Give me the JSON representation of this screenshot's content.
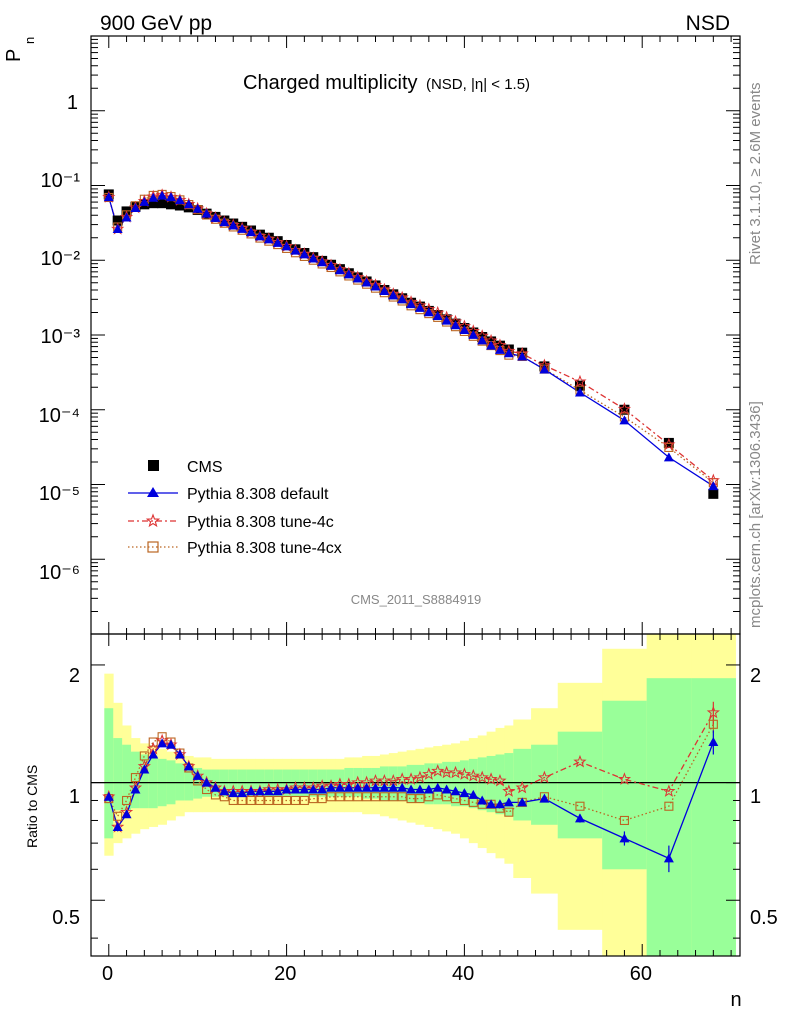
{
  "header": {
    "left": "900 GeV pp",
    "right": "NSD"
  },
  "side": {
    "rivet": "Rivet 3.1.10, ≥ 2.6M events",
    "mcplots": "mcplots.cern.ch [arXiv:1306.3436]"
  },
  "chart_data": {
    "type": "line",
    "title": "Charged multiplicity",
    "subtitle": "(NSD, |η| < 1.5)",
    "ylabel_main": "P",
    "ylabel_sub": "n",
    "xlabel": "n",
    "ratio_ylabel": "Ratio to CMS",
    "watermark": "CMS_2011_S8884919",
    "xlim": [
      -2,
      71
    ],
    "ylim_main": [
      1e-07,
      10
    ],
    "ylim_ratio": [
      0.36,
      2.4
    ],
    "x_ticks": [
      "0",
      "20",
      "40",
      "60"
    ],
    "y_ticks_main": [
      "10⁻⁶",
      "10⁻⁵",
      "10⁻⁴",
      "10⁻³",
      "10⁻²",
      "10⁻¹",
      "1"
    ],
    "y_ticks_ratio": [
      "0.5",
      "1",
      "2"
    ],
    "legend": [
      {
        "key": "data",
        "label": "CMS"
      },
      {
        "key": "default",
        "label": "Pythia 8.308 default"
      },
      {
        "key": "c4",
        "label": "Pythia 8.308 tune-4c"
      },
      {
        "key": "cx",
        "label": "Pythia 8.308 tune-4cx"
      }
    ],
    "colors": {
      "data": "#000000",
      "default": "#0000dd",
      "c4": "#dd3333",
      "cx": "#bb6622",
      "band_inner": "#99ff99",
      "band_outer": "#ffff99"
    },
    "data_x": [
      0,
      1,
      2,
      3,
      4,
      5,
      6,
      7,
      8,
      9,
      10,
      11,
      12,
      13,
      14,
      15,
      16,
      17,
      18,
      19,
      20,
      21,
      22,
      23,
      24,
      25,
      26,
      27,
      28,
      29,
      30,
      31,
      32,
      33,
      34,
      35,
      36,
      37,
      38,
      39,
      40,
      41,
      42,
      43,
      44,
      45,
      46.5,
      49,
      53,
      58,
      63,
      68
    ],
    "data_y": [
      0.076,
      0.034,
      0.045,
      0.052,
      0.056,
      0.058,
      0.058,
      0.056,
      0.054,
      0.051,
      0.047,
      0.042,
      0.038,
      0.034,
      0.031,
      0.028,
      0.025,
      0.022,
      0.02,
      0.018,
      0.016,
      0.014,
      0.0125,
      0.011,
      0.0098,
      0.0087,
      0.0076,
      0.0067,
      0.0059,
      0.0052,
      0.0046,
      0.004,
      0.0035,
      0.0031,
      0.0027,
      0.0024,
      0.0021,
      0.00185,
      0.00162,
      0.00142,
      0.00124,
      0.00108,
      0.00094,
      0.00082,
      0.00072,
      0.00064,
      0.00058,
      0.00038,
      0.00021,
      0.0001,
      3.6e-05,
      7.5e-06
    ],
    "ratio_x": [
      0,
      1,
      2,
      3,
      4,
      5,
      6,
      7,
      8,
      9,
      10,
      11,
      12,
      13,
      14,
      15,
      16,
      17,
      18,
      19,
      20,
      21,
      22,
      23,
      24,
      25,
      26,
      27,
      28,
      29,
      30,
      31,
      32,
      33,
      34,
      35,
      36,
      37,
      38,
      39,
      40,
      41,
      42,
      43,
      44,
      45,
      46.5,
      49,
      53,
      58,
      63,
      68
    ],
    "band_x": [
      0,
      1,
      2,
      3,
      4,
      5,
      6,
      7,
      8,
      9,
      10,
      11,
      12,
      13,
      14,
      15,
      16,
      17,
      18,
      19,
      20,
      21,
      22,
      23,
      24,
      25,
      26,
      27,
      28,
      29,
      30,
      31,
      32,
      33,
      34,
      35,
      36,
      37,
      38,
      39,
      40,
      41,
      42,
      43,
      44,
      45,
      46.5,
      49,
      53,
      58,
      63,
      68
    ],
    "band_halfwidth": [
      0.5,
      0.5,
      0.5,
      0.5,
      0.5,
      0.5,
      0.5,
      0.5,
      0.5,
      0.5,
      0.5,
      0.5,
      0.5,
      0.5,
      0.5,
      0.5,
      0.5,
      0.5,
      0.5,
      0.5,
      0.5,
      0.5,
      0.5,
      0.5,
      0.5,
      0.5,
      0.5,
      0.5,
      0.5,
      0.5,
      0.5,
      0.5,
      0.5,
      0.5,
      0.5,
      0.5,
      0.5,
      0.5,
      0.5,
      0.5,
      0.5,
      0.5,
      0.5,
      0.5,
      0.5,
      0.5,
      1,
      1.5,
      2.5,
      2.5,
      2.5,
      2.5
    ],
    "band_inner": [
      [
        0.72,
        1.55
      ],
      [
        0.85,
        1.3
      ],
      [
        0.85,
        1.25
      ],
      [
        0.86,
        1.2
      ],
      [
        0.86,
        1.18
      ],
      [
        0.86,
        1.17
      ],
      [
        0.87,
        1.15
      ],
      [
        0.88,
        1.14
      ],
      [
        0.9,
        1.12
      ],
      [
        0.9,
        1.1
      ],
      [
        0.91,
        1.09
      ],
      [
        0.92,
        1.08
      ],
      [
        0.92,
        1.08
      ],
      [
        0.92,
        1.08
      ],
      [
        0.92,
        1.08
      ],
      [
        0.92,
        1.08
      ],
      [
        0.92,
        1.08
      ],
      [
        0.92,
        1.08
      ],
      [
        0.92,
        1.08
      ],
      [
        0.92,
        1.08
      ],
      [
        0.92,
        1.08
      ],
      [
        0.92,
        1.08
      ],
      [
        0.92,
        1.08
      ],
      [
        0.92,
        1.08
      ],
      [
        0.92,
        1.08
      ],
      [
        0.92,
        1.08
      ],
      [
        0.92,
        1.08
      ],
      [
        0.92,
        1.09
      ],
      [
        0.92,
        1.09
      ],
      [
        0.91,
        1.09
      ],
      [
        0.91,
        1.09
      ],
      [
        0.9,
        1.1
      ],
      [
        0.9,
        1.1
      ],
      [
        0.9,
        1.1
      ],
      [
        0.89,
        1.11
      ],
      [
        0.89,
        1.11
      ],
      [
        0.88,
        1.12
      ],
      [
        0.88,
        1.12
      ],
      [
        0.88,
        1.13
      ],
      [
        0.87,
        1.13
      ],
      [
        0.87,
        1.14
      ],
      [
        0.86,
        1.15
      ],
      [
        0.85,
        1.16
      ],
      [
        0.84,
        1.17
      ],
      [
        0.83,
        1.18
      ],
      [
        0.82,
        1.19
      ],
      [
        0.8,
        1.22
      ],
      [
        0.78,
        1.25
      ],
      [
        0.72,
        1.35
      ],
      [
        0.6,
        1.62
      ],
      [
        0.36,
        1.85
      ],
      [
        0.36,
        1.85
      ]
    ],
    "band_outer": [
      [
        0.65,
        1.9
      ],
      [
        0.7,
        1.6
      ],
      [
        0.72,
        1.4
      ],
      [
        0.74,
        1.3
      ],
      [
        0.76,
        1.26
      ],
      [
        0.77,
        1.24
      ],
      [
        0.78,
        1.22
      ],
      [
        0.8,
        1.2
      ],
      [
        0.82,
        1.18
      ],
      [
        0.84,
        1.17
      ],
      [
        0.84,
        1.16
      ],
      [
        0.84,
        1.16
      ],
      [
        0.84,
        1.15
      ],
      [
        0.84,
        1.15
      ],
      [
        0.84,
        1.15
      ],
      [
        0.84,
        1.15
      ],
      [
        0.84,
        1.15
      ],
      [
        0.84,
        1.15
      ],
      [
        0.84,
        1.15
      ],
      [
        0.84,
        1.15
      ],
      [
        0.84,
        1.15
      ],
      [
        0.84,
        1.15
      ],
      [
        0.84,
        1.15
      ],
      [
        0.84,
        1.15
      ],
      [
        0.84,
        1.15
      ],
      [
        0.84,
        1.15
      ],
      [
        0.84,
        1.15
      ],
      [
        0.84,
        1.16
      ],
      [
        0.84,
        1.16
      ],
      [
        0.83,
        1.17
      ],
      [
        0.83,
        1.17
      ],
      [
        0.82,
        1.18
      ],
      [
        0.81,
        1.19
      ],
      [
        0.8,
        1.2
      ],
      [
        0.79,
        1.21
      ],
      [
        0.78,
        1.22
      ],
      [
        0.77,
        1.23
      ],
      [
        0.76,
        1.24
      ],
      [
        0.75,
        1.25
      ],
      [
        0.74,
        1.26
      ],
      [
        0.72,
        1.28
      ],
      [
        0.7,
        1.3
      ],
      [
        0.68,
        1.32
      ],
      [
        0.66,
        1.35
      ],
      [
        0.64,
        1.38
      ],
      [
        0.62,
        1.4
      ],
      [
        0.57,
        1.45
      ],
      [
        0.52,
        1.55
      ],
      [
        0.42,
        1.8
      ],
      [
        0.36,
        2.2
      ],
      [
        0.36,
        2.4
      ],
      [
        0.36,
        2.4
      ]
    ],
    "series": [
      {
        "key": "default",
        "name": "Pythia 8.308 default",
        "ratio": [
          0.92,
          0.77,
          0.83,
          0.96,
          1.08,
          1.18,
          1.26,
          1.25,
          1.18,
          1.1,
          1.04,
          1,
          0.97,
          0.95,
          0.94,
          0.94,
          0.95,
          0.95,
          0.95,
          0.95,
          0.96,
          0.96,
          0.96,
          0.96,
          0.96,
          0.97,
          0.97,
          0.97,
          0.97,
          0.97,
          0.97,
          0.97,
          0.97,
          0.97,
          0.96,
          0.96,
          0.96,
          0.97,
          0.96,
          0.95,
          0.94,
          0.93,
          0.9,
          0.88,
          0.88,
          0.89,
          0.89,
          0.91,
          0.81,
          0.72,
          0.64,
          1.27
        ],
        "ratio_err": [
          [
            1,
            0.02
          ],
          [
            6,
            0.02
          ],
          [
            46.5,
            0.02
          ],
          [
            49,
            0.02
          ],
          [
            53,
            0.02
          ],
          [
            58,
            0.03
          ],
          [
            63,
            0.05
          ],
          [
            68,
            0.09
          ]
        ]
      },
      {
        "key": "c4",
        "name": "Pythia 8.308 tune-4c",
        "ratio": [
          0.92,
          0.77,
          0.84,
          0.97,
          1.1,
          1.22,
          1.28,
          1.25,
          1.18,
          1.1,
          1.04,
          1,
          0.97,
          0.95,
          0.95,
          0.95,
          0.95,
          0.95,
          0.96,
          0.96,
          0.96,
          0.97,
          0.97,
          0.97,
          0.98,
          0.98,
          0.99,
          0.99,
          1,
          1,
          1.01,
          1.01,
          1.01,
          1.02,
          1.02,
          1.03,
          1.05,
          1.07,
          1.06,
          1.06,
          1.05,
          1.04,
          1.03,
          1.02,
          1.01,
          0.95,
          0.97,
          1.03,
          1.13,
          1.02,
          0.95,
          1.51
        ],
        "ratio_err": [
          [
            68,
            0.1
          ]
        ]
      },
      {
        "key": "cx",
        "name": "Pythia 8.308 tune-4cx",
        "ratio": [
          0.91,
          0.82,
          0.9,
          1.03,
          1.17,
          1.27,
          1.31,
          1.27,
          1.19,
          1.09,
          1.01,
          0.96,
          0.93,
          0.92,
          0.9,
          0.9,
          0.9,
          0.9,
          0.9,
          0.9,
          0.9,
          0.9,
          0.9,
          0.91,
          0.91,
          0.92,
          0.92,
          0.92,
          0.92,
          0.92,
          0.92,
          0.92,
          0.92,
          0.92,
          0.91,
          0.91,
          0.92,
          0.93,
          0.92,
          0.91,
          0.9,
          0.89,
          0.88,
          0.88,
          0.86,
          0.84,
          0.89,
          0.92,
          0.87,
          0.8,
          0.87,
          1.41
        ],
        "ratio_err": [
          [
            68,
            0.07
          ]
        ]
      }
    ]
  }
}
